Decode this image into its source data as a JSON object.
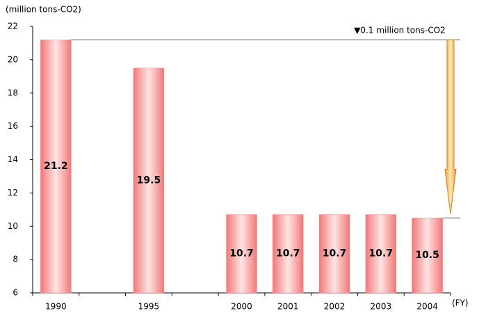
{
  "chart_data": {
    "type": "bar",
    "y_label": "(million tons-CO2)",
    "x_label": "(FY)",
    "annotation": "▼0.1 million tons-CO2",
    "categories": [
      "1990",
      null,
      "1995",
      null,
      "2000",
      "2001",
      "2002",
      "2003",
      "2004"
    ],
    "values": [
      21.2,
      null,
      19.5,
      null,
      10.7,
      10.7,
      10.7,
      10.7,
      10.5
    ],
    "value_labels": [
      "21.2",
      null,
      "19.5",
      null,
      "10.7",
      "10.7",
      "10.7",
      "10.7",
      "10.5"
    ],
    "color": "#f28c8c",
    "ylim": [
      6,
      22
    ],
    "yticks": [
      6,
      8,
      10,
      12,
      14,
      16,
      18,
      20,
      22
    ]
  }
}
